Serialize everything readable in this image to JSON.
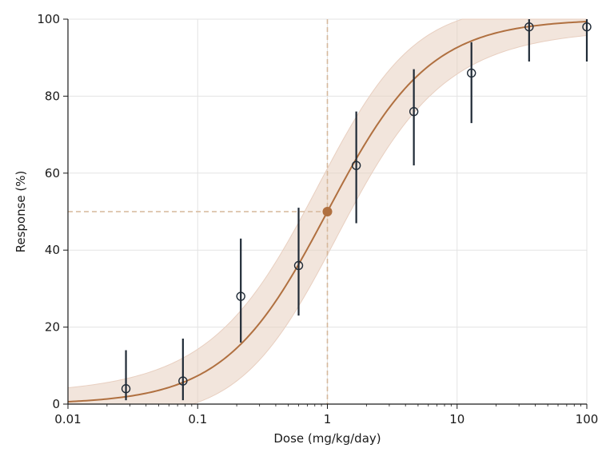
{
  "chart_data": {
    "type": "scatter",
    "title": "",
    "xlabel": "Dose (mg/kg/day)",
    "ylabel": "Response (%)",
    "x_scale": "log",
    "xlim": [
      0.01,
      100
    ],
    "ylim": [
      0,
      100
    ],
    "x_ticks": [
      0.01,
      0.1,
      1,
      10,
      100
    ],
    "x_tick_labels": [
      "0.01",
      "0.1",
      "1",
      "10",
      "100"
    ],
    "y_ticks": [
      0,
      20,
      40,
      60,
      80,
      100
    ],
    "y_tick_labels": [
      "0",
      "20",
      "40",
      "60",
      "80",
      "100"
    ],
    "grid": true,
    "fit_curve": {
      "model": "hill",
      "ec50": 1,
      "hill_slope": 1.1,
      "bottom": 0,
      "top": 100,
      "color": "#b07040",
      "band_color": "#e8cfc0"
    },
    "ec50_point": {
      "x": 1,
      "y": 50
    },
    "points": [
      {
        "x": 0.028,
        "y": 4,
        "err_low": 1,
        "err_high": 14
      },
      {
        "x": 0.077,
        "y": 6,
        "err_low": 1,
        "err_high": 17
      },
      {
        "x": 0.215,
        "y": 28,
        "err_low": 16,
        "err_high": 43
      },
      {
        "x": 0.6,
        "y": 36,
        "err_low": 23,
        "err_high": 51
      },
      {
        "x": 1.67,
        "y": 62,
        "err_low": 47,
        "err_high": 76
      },
      {
        "x": 4.64,
        "y": 76,
        "err_low": 62,
        "err_high": 87
      },
      {
        "x": 12.9,
        "y": 86,
        "err_low": 73,
        "err_high": 94
      },
      {
        "x": 35.9,
        "y": 98,
        "err_low": 89,
        "err_high": 100
      },
      {
        "x": 100,
        "y": 98,
        "err_low": 89,
        "err_high": 100
      }
    ],
    "marker_color": "#1f2a36"
  }
}
